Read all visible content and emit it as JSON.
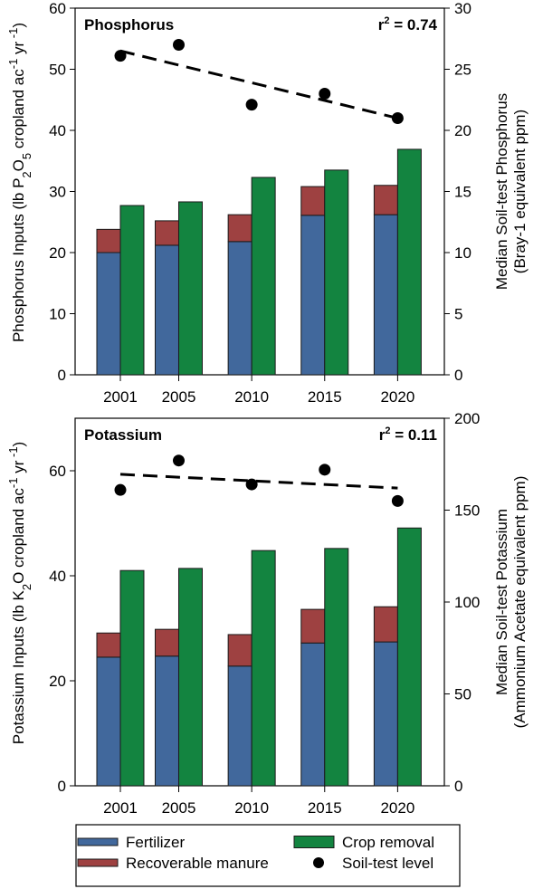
{
  "chart_data": [
    {
      "type": "bar",
      "panel": "Phosphorus",
      "title": "Phosphorus",
      "annotation": {
        "prefix": "r",
        "sup": "2",
        "suffix": " = 0.74"
      },
      "categories": [
        "2001",
        "2005",
        "2010",
        "2015",
        "2020"
      ],
      "x_values": [
        2001,
        2005,
        2010,
        2015,
        2020
      ],
      "xlim": [
        1997.9,
        2023.2
      ],
      "ylabel_left": {
        "parts": [
          [
            "Phosphorus Inputs (lb P",
            ""
          ],
          [
            "2",
            "sub"
          ],
          [
            "O",
            ""
          ],
          [
            "5",
            "sub"
          ],
          [
            " cropland ac",
            ""
          ],
          [
            "-1",
            "sup"
          ],
          [
            " yr",
            ""
          ],
          [
            " -1",
            "sup"
          ],
          [
            ")",
            ""
          ]
        ]
      },
      "ylabel_right": [
        "Median Soil-test Phosphorus",
        "(Bray-1 equivalent ppm)"
      ],
      "ylim_left": [
        0,
        60
      ],
      "yticks_left": [
        0,
        10,
        20,
        30,
        40,
        50,
        60
      ],
      "ylim_right": [
        0,
        30
      ],
      "yticks_right": [
        0,
        5,
        10,
        15,
        20,
        25,
        30
      ],
      "series": [
        {
          "name": "Fertilizer",
          "stack": "inputs",
          "values": [
            20.0,
            21.2,
            21.8,
            26.1,
            26.2
          ]
        },
        {
          "name": "Recoverable manure",
          "stack": "inputs",
          "values": [
            3.8,
            4.0,
            4.4,
            4.7,
            4.8
          ]
        },
        {
          "name": "Crop removal",
          "stack": "removal",
          "values": [
            27.7,
            28.3,
            32.3,
            33.5,
            36.9
          ]
        },
        {
          "name": "Soil-test level",
          "axis": "right",
          "type": "scatter",
          "values": [
            26.1,
            27.0,
            22.1,
            23.0,
            21.0
          ]
        }
      ],
      "trendline": {
        "axis": "right",
        "style": "dashed",
        "x": [
          2001,
          2020
        ],
        "y": [
          26.5,
          21.0
        ]
      }
    },
    {
      "type": "bar",
      "panel": "Potassium",
      "title": "Potassium",
      "annotation": {
        "prefix": "r",
        "sup": "2",
        "suffix": " = 0.11"
      },
      "categories": [
        "2001",
        "2005",
        "2010",
        "2015",
        "2020"
      ],
      "x_values": [
        2001,
        2005,
        2010,
        2015,
        2020
      ],
      "xlim": [
        1997.9,
        2023.2
      ],
      "ylabel_left": {
        "parts": [
          [
            "Potassium Inputs (lb K",
            ""
          ],
          [
            "2",
            "sub"
          ],
          [
            "O cropland ac",
            ""
          ],
          [
            "-1",
            "sup"
          ],
          [
            " yr",
            ""
          ],
          [
            " -1",
            "sup"
          ],
          [
            ")",
            ""
          ]
        ]
      },
      "ylabel_right": [
        "Median Soil-test Potassium",
        "(Ammonium Acetate equivalent ppm)"
      ],
      "ylim_left": [
        0,
        70
      ],
      "yticks_left": [
        0,
        20,
        40,
        60
      ],
      "ylim_right": [
        0,
        200
      ],
      "yticks_right": [
        0,
        50,
        100,
        150,
        200
      ],
      "series": [
        {
          "name": "Fertilizer",
          "stack": "inputs",
          "values": [
            24.5,
            24.7,
            22.8,
            27.2,
            27.4
          ]
        },
        {
          "name": "Recoverable manure",
          "stack": "inputs",
          "values": [
            4.6,
            5.1,
            6.0,
            6.4,
            6.7
          ]
        },
        {
          "name": "Crop removal",
          "stack": "removal",
          "values": [
            41.0,
            41.4,
            44.8,
            45.2,
            49.1
          ]
        },
        {
          "name": "Soil-test level",
          "axis": "right",
          "type": "scatter",
          "values": [
            161,
            177,
            164,
            172,
            155
          ]
        }
      ],
      "trendline": {
        "axis": "right",
        "style": "dashed",
        "x": [
          2001,
          2020
        ],
        "y": [
          169.5,
          162.0
        ]
      }
    }
  ],
  "legend": {
    "placement": "bottom",
    "items": [
      {
        "label": "Fertilizer",
        "kind": "patch",
        "color": "#41689c"
      },
      {
        "label": "Crop removal",
        "kind": "patch",
        "color": "#138440"
      },
      {
        "label": "Recoverable manure",
        "kind": "patch",
        "color": "#9e4141"
      },
      {
        "label": "Soil-test level",
        "kind": "dot",
        "color": "#000000"
      }
    ]
  },
  "colors": {
    "Fertilizer": "#41689c",
    "Recoverable manure": "#9e4141",
    "Crop removal": "#138440",
    "Soil-test level": "#000000"
  }
}
